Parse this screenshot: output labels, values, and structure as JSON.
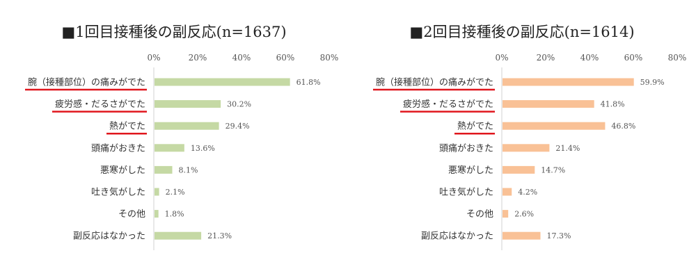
{
  "chart_data": [
    {
      "type": "bar",
      "orientation": "horizontal",
      "title": "■1回目接種後の副反応(n=1637)",
      "categories": [
        "腕（接種部位）の痛みがでた",
        "疲労感・だるさがでた",
        "熱がでた",
        "頭痛がおきた",
        "悪寒がした",
        "吐き気がした",
        "その他",
        "副反応はなかった"
      ],
      "values": [
        61.8,
        30.2,
        29.4,
        13.6,
        8.1,
        2.1,
        1.8,
        21.3
      ],
      "value_labels": [
        "61.8%",
        "30.2%",
        "29.4%",
        "13.6%",
        "8.1%",
        "2.1%",
        "1.8%",
        "21.3%"
      ],
      "underlined_categories": [
        0,
        1,
        2
      ],
      "xlim": [
        0,
        80
      ],
      "x_ticks": [
        "0%",
        "20%",
        "40%",
        "60%",
        "80%"
      ],
      "bar_color": "#c5d9a4",
      "underline_color": "#e0161d",
      "grid": false,
      "legend": "none"
    },
    {
      "type": "bar",
      "orientation": "horizontal",
      "title": "■2回目接種後の副反応(n=1614)",
      "categories": [
        "腕（接種部位）の痛みがでた",
        "疲労感・だるさがでた",
        "熱がでた",
        "頭痛がおきた",
        "悪寒がした",
        "吐き気がした",
        "その他",
        "副反応はなかった"
      ],
      "values": [
        59.9,
        41.8,
        46.8,
        21.4,
        14.7,
        4.2,
        2.6,
        17.3
      ],
      "value_labels": [
        "59.9%",
        "41.8%",
        "46.8%",
        "21.4%",
        "14.7%",
        "4.2%",
        "2.6%",
        "17.3%"
      ],
      "underlined_categories": [
        0,
        1,
        2
      ],
      "xlim": [
        0,
        80
      ],
      "x_ticks": [
        "0%",
        "20%",
        "40%",
        "60%",
        "80%"
      ],
      "bar_color": "#f9c196",
      "underline_color": "#e0161d",
      "grid": false,
      "legend": "none"
    }
  ]
}
